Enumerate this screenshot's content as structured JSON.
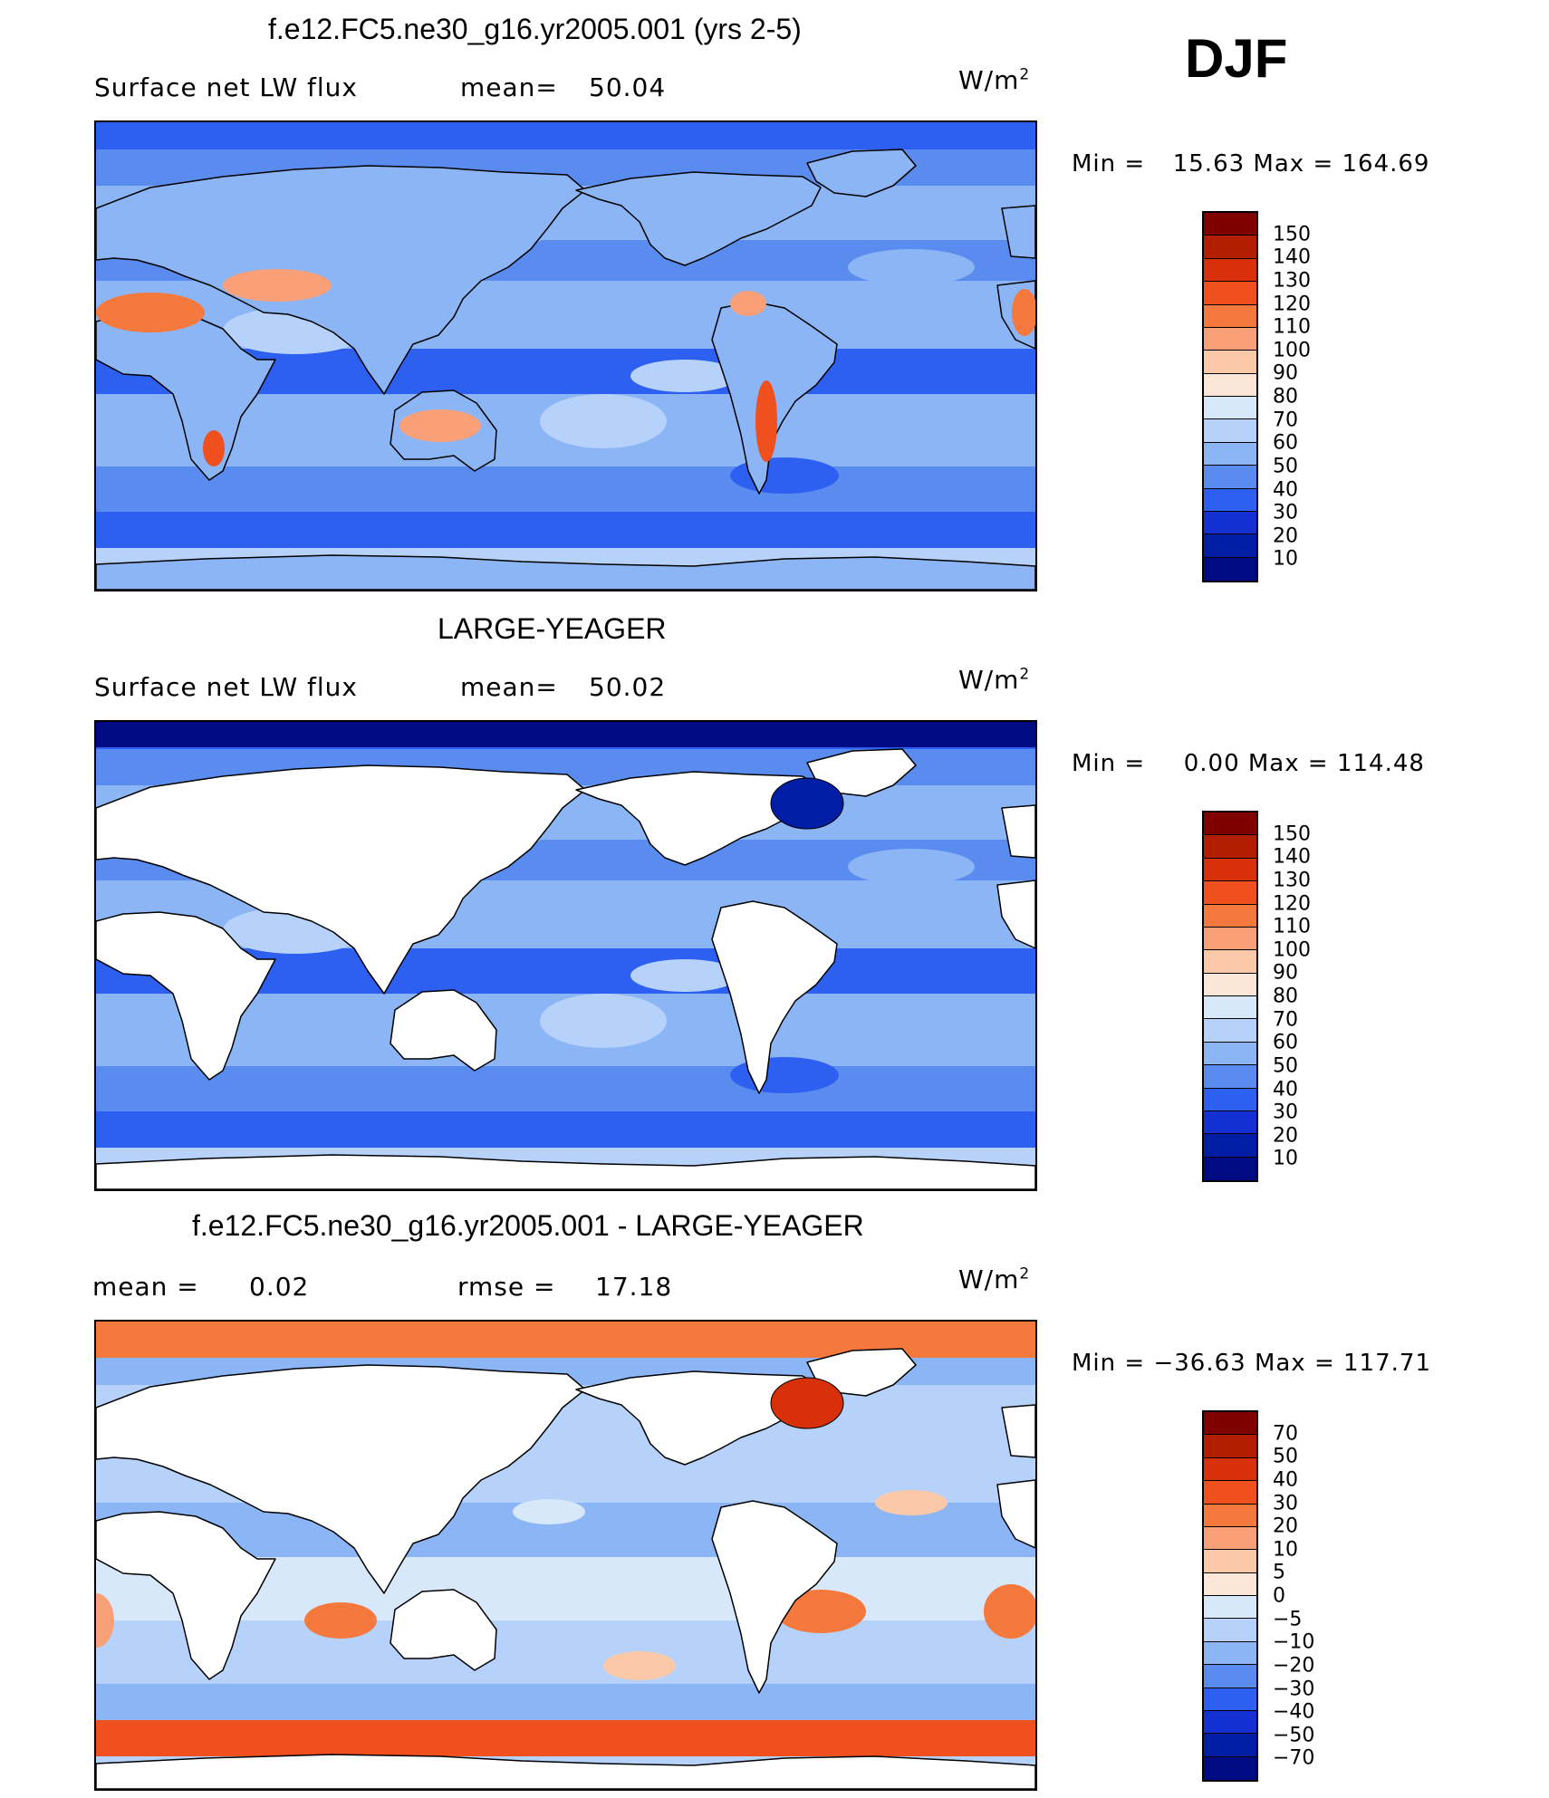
{
  "season": "DJF",
  "panels": [
    {
      "title": "f.e12.FC5.ne30_g16.yr2005.001 (yrs 2-5)",
      "left_label": "Surface net LW flux",
      "stat_label": "mean=",
      "stat_value": "50.04",
      "units": "W/m",
      "units_exp": "2",
      "min_label": "Min =",
      "min_value": "15.63",
      "max_label": "Max =",
      "max_value": "164.69",
      "land_masked": false,
      "colorbar": [
        "150",
        "140",
        "130",
        "120",
        "110",
        "100",
        "90",
        "80",
        "70",
        "60",
        "50",
        "40",
        "30",
        "20",
        "10"
      ],
      "colors": [
        "#800000",
        "#b41e00",
        "#d7300a",
        "#f0501e",
        "#f5783c",
        "#faa078",
        "#fbc9a8",
        "#fce6d7",
        "#d7e8fb",
        "#b6d2fa",
        "#8cb5f5",
        "#5a8cf0",
        "#2d5ff0",
        "#1430d2",
        "#001ea5",
        "#000a82"
      ]
    },
    {
      "title": "LARGE-YEAGER",
      "left_label": "Surface net LW flux",
      "stat_label": "mean=",
      "stat_value": "50.02",
      "units": "W/m",
      "units_exp": "2",
      "min_label": "Min =",
      "min_value": "0.00",
      "max_label": "Max =",
      "max_value": "114.48",
      "land_masked": true,
      "colorbar": [
        "150",
        "140",
        "130",
        "120",
        "110",
        "100",
        "90",
        "80",
        "70",
        "60",
        "50",
        "40",
        "30",
        "20",
        "10"
      ],
      "colors": [
        "#800000",
        "#b41e00",
        "#d7300a",
        "#f0501e",
        "#f5783c",
        "#faa078",
        "#fbc9a8",
        "#fce6d7",
        "#d7e8fb",
        "#b6d2fa",
        "#8cb5f5",
        "#5a8cf0",
        "#2d5ff0",
        "#1430d2",
        "#001ea5",
        "#000a82"
      ]
    },
    {
      "title": "f.e12.FC5.ne30_g16.yr2005.001 - LARGE-YEAGER",
      "left_label": "mean =",
      "stat_label": "rmse =",
      "stat_value": "17.18",
      "mean_value": "0.02",
      "units": "W/m",
      "units_exp": "2",
      "min_label": "Min =",
      "min_value": "−36.63",
      "max_label": "Max =",
      "max_value": "117.71",
      "land_masked": true,
      "colorbar": [
        "70",
        "50",
        "40",
        "30",
        "20",
        "10",
        "5",
        "0",
        "−5",
        "−10",
        "−20",
        "−30",
        "−40",
        "−50",
        "−70"
      ],
      "colors": [
        "#800000",
        "#b41e00",
        "#d7300a",
        "#f0501e",
        "#f5783c",
        "#faa078",
        "#fbc9a8",
        "#fce6d7",
        "#d7e8fb",
        "#b6d2fa",
        "#8cb5f5",
        "#5a8cf0",
        "#2d5ff0",
        "#1430d2",
        "#001ea5",
        "#000a82"
      ]
    }
  ]
}
